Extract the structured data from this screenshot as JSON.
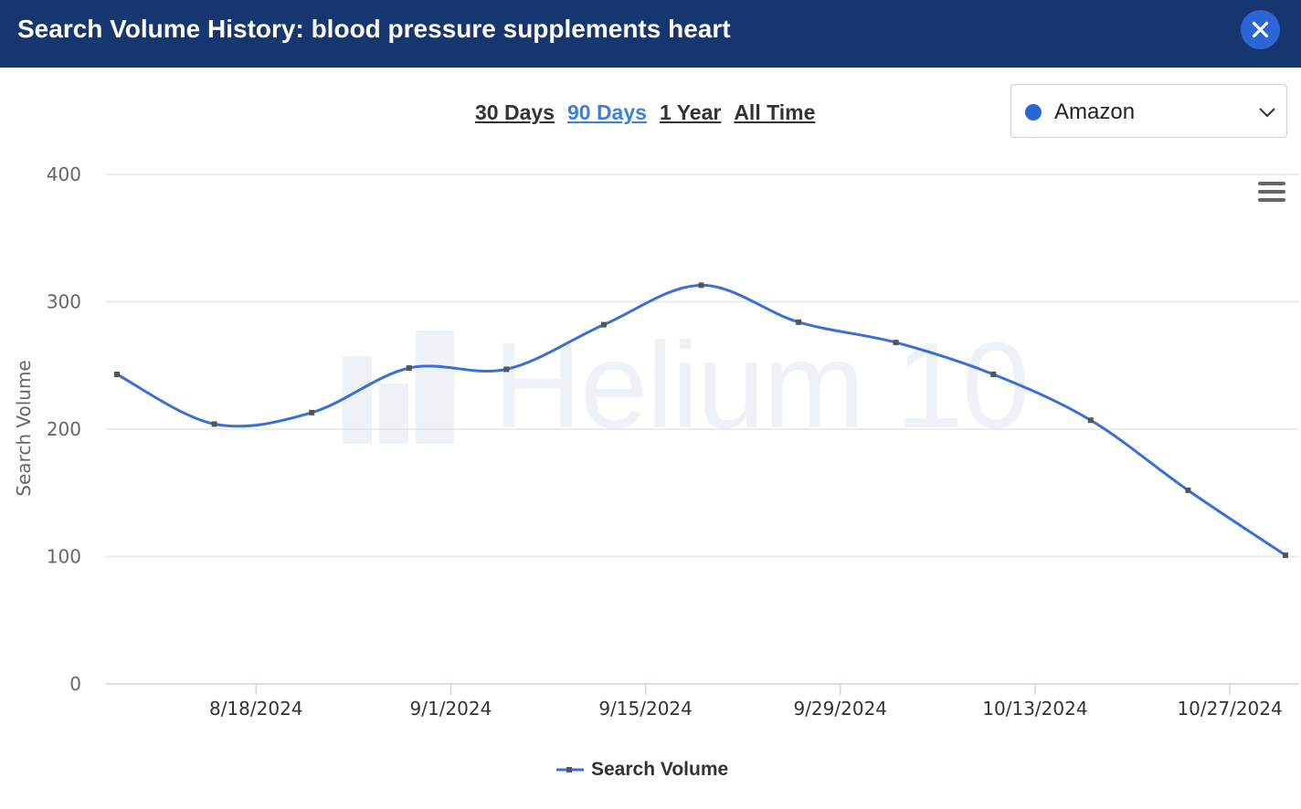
{
  "header": {
    "title": "Search Volume History: blood pressure supplements heart"
  },
  "range_tabs": [
    {
      "label": "30 Days",
      "active": false
    },
    {
      "label": "90 Days",
      "active": true
    },
    {
      "label": "1 Year",
      "active": false
    },
    {
      "label": "All Time",
      "active": false
    }
  ],
  "marketplace": {
    "selected": "Amazon",
    "dot_color": "#2c66d6"
  },
  "watermark": {
    "text": "Helium 10"
  },
  "icons": {
    "close": "close-icon",
    "menu": "hamburger-menu-icon",
    "dropdown": "chevron-down-icon"
  },
  "colors": {
    "header_bg": "#163670",
    "accent": "#3b7fe0",
    "series": "#3a6fd8"
  },
  "chart_data": {
    "type": "line",
    "ylabel": "Search Volume",
    "xlabel": "",
    "ylim": [
      0,
      400
    ],
    "yticks": [
      0,
      100,
      200,
      300,
      400
    ],
    "xticks": [
      "8/18/2024",
      "9/1/2024",
      "9/15/2024",
      "9/29/2024",
      "10/13/2024",
      "10/27/2024"
    ],
    "grid": true,
    "legend": "bottom-center",
    "series": [
      {
        "name": "Search Volume",
        "x": [
          "2024-08-08",
          "2024-08-15",
          "2024-08-22",
          "2024-08-29",
          "2024-09-05",
          "2024-09-12",
          "2024-09-19",
          "2024-09-26",
          "2024-10-03",
          "2024-10-10",
          "2024-10-17",
          "2024-10-24",
          "2024-10-31"
        ],
        "values": [
          243,
          204,
          213,
          248,
          247,
          282,
          313,
          284,
          268,
          243,
          207,
          152,
          101
        ]
      }
    ]
  }
}
